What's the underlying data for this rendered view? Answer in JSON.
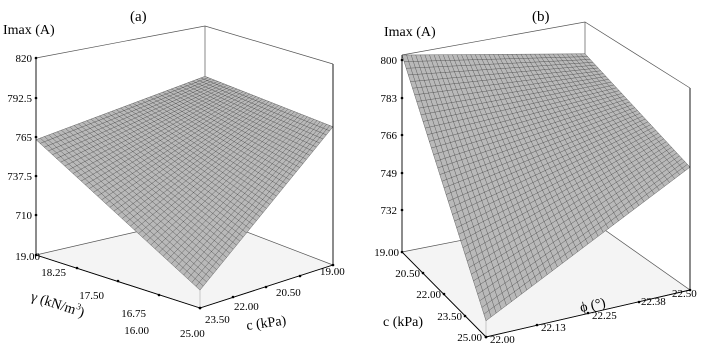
{
  "chart_data": [
    {
      "type": "surface3d",
      "panel_label": "(a)",
      "zlabel": "Imax (A)",
      "xlabel": "c (kPa)",
      "ylabel_main": "γ (kN/m",
      "ylabel_sup": "3",
      "ylabel_end": ")",
      "z_ticks": [
        "820",
        "792.5",
        "765",
        "737.5",
        "710"
      ],
      "y_ticks": [
        "19.00",
        "18.25",
        "17.50",
        "16.75",
        "16.00"
      ],
      "x_ticks": [
        "25.00",
        "23.50",
        "22.00",
        "20.50",
        "19.00"
      ],
      "x_range": [
        19.0,
        25.0
      ],
      "y_range": [
        16.0,
        19.0
      ],
      "z_range": [
        682.5,
        820
      ],
      "corner_values": {
        "gamma19_c25": 763,
        "gamma19_c19": 780,
        "gamma16_c19": 779,
        "gamma16_c25": 695
      }
    },
    {
      "type": "surface3d",
      "panel_label": "(b)",
      "zlabel": "Imax (A)",
      "xlabel": "ϕ (°)",
      "ylabel": "c (kPa)",
      "z_ticks": [
        "800",
        "783",
        "766",
        "749",
        "732"
      ],
      "y_ticks": [
        "19.00",
        "20.50",
        "22.00",
        "23.50",
        "25.00"
      ],
      "x_ticks": [
        "22.00",
        "22.13",
        "22.25",
        "22.38",
        "22.50"
      ],
      "x_range": [
        22.0,
        22.5
      ],
      "y_range": [
        19.0,
        25.0
      ],
      "z_range": [
        715,
        800
      ],
      "corner_values": {
        "c19_phi22": 800,
        "c19_phi225": 785,
        "c25_phi225": 768,
        "c25_phi22": 722
      }
    }
  ]
}
